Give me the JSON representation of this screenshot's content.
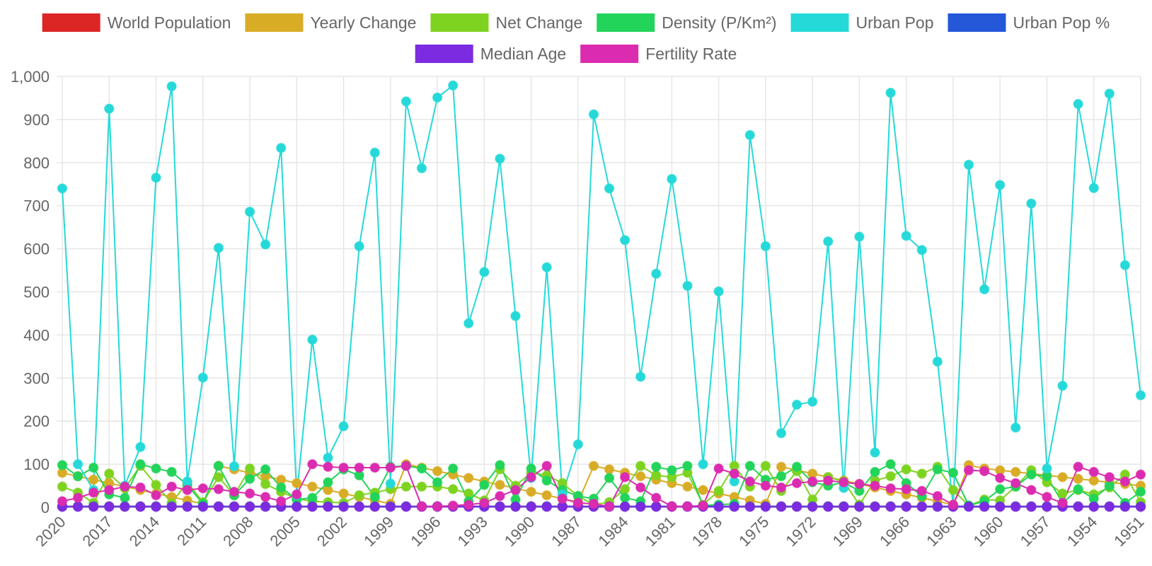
{
  "chart_data": {
    "type": "line",
    "x": [
      "2020",
      "2019",
      "2018",
      "2017",
      "2016",
      "2015",
      "2014",
      "2013",
      "2012",
      "2011",
      "2010",
      "2009",
      "2008",
      "2007",
      "2006",
      "2005",
      "2004",
      "2003",
      "2002",
      "2001",
      "2000",
      "1999",
      "1998",
      "1997",
      "1996",
      "1995",
      "1994",
      "1993",
      "1992",
      "1991",
      "1990",
      "1989",
      "1988",
      "1987",
      "1986",
      "1985",
      "1984",
      "1983",
      "1982",
      "1981",
      "1980",
      "1979",
      "1978",
      "1977",
      "1976",
      "1975",
      "1974",
      "1973",
      "1972",
      "1971",
      "1970",
      "1969",
      "1968",
      "1967",
      "1966",
      "1965",
      "1964",
      "1963",
      "1962",
      "1961",
      "1960",
      "1959",
      "1958",
      "1957",
      "1956",
      "1955",
      "1954",
      "1953",
      "1952",
      "1951"
    ],
    "ylim": [
      0,
      1000
    ],
    "yticks": [
      "0",
      "100",
      "200",
      "300",
      "400",
      "500",
      "600",
      "700",
      "800",
      "900",
      "1,000"
    ],
    "grid": true,
    "legend_position": "top",
    "series": [
      {
        "name": "World Population",
        "color": "#dc2626",
        "values": [
          2,
          2,
          2,
          2,
          2,
          2,
          2,
          2,
          2,
          2,
          2,
          2,
          2,
          2,
          2,
          2,
          2,
          2,
          2,
          2,
          2,
          2,
          2,
          2,
          2,
          2,
          2,
          2,
          2,
          2,
          2,
          2,
          2,
          2,
          2,
          2,
          2,
          2,
          2,
          2,
          2,
          2,
          2,
          2,
          2,
          2,
          2,
          2,
          2,
          2,
          2,
          2,
          2,
          2,
          2,
          2,
          2,
          2,
          2,
          2,
          2,
          2,
          2,
          2,
          2,
          2,
          2,
          2,
          2,
          2
        ]
      },
      {
        "name": "Yearly Change",
        "color": "#d9ac26",
        "values": [
          80,
          72,
          64,
          56,
          48,
          40,
          32,
          24,
          16,
          8,
          96,
          88,
          80,
          72,
          64,
          56,
          48,
          40,
          32,
          24,
          16,
          8,
          100,
          92,
          84,
          76,
          68,
          60,
          52,
          44,
          36,
          28,
          20,
          12,
          96,
          88,
          80,
          72,
          64,
          56,
          48,
          40,
          32,
          24,
          16,
          8,
          94,
          86,
          78,
          70,
          62,
          54,
          46,
          38,
          30,
          22,
          14,
          6,
          98,
          90,
          86,
          82,
          78,
          74,
          70,
          66,
          62,
          58,
          54,
          50
        ]
      },
      {
        "name": "Net Change",
        "color": "#7ed321",
        "values": [
          48,
          34,
          10,
          78,
          44,
          96,
          52,
          10,
          58,
          12,
          70,
          28,
          90,
          54,
          36,
          20,
          14,
          12,
          10,
          28,
          34,
          42,
          48,
          48,
          48,
          42,
          32,
          16,
          88,
          50,
          80,
          74,
          56,
          26,
          6,
          12,
          42,
          96,
          74,
          70,
          80,
          6,
          38,
          96,
          48,
          96,
          38,
          84,
          18,
          70,
          60,
          6,
          62,
          72,
          88,
          78,
          94,
          40,
          4,
          18,
          16,
          48,
          86,
          58,
          32,
          40,
          30,
          46,
          76,
          12
        ]
      },
      {
        "name": "Density (P/Km²)",
        "color": "#22d45a",
        "values": [
          98,
          72,
          92,
          30,
          22,
          100,
          90,
          82,
          52,
          8,
          96,
          28,
          66,
          88,
          46,
          18,
          22,
          58,
          88,
          74,
          24,
          94,
          96,
          90,
          58,
          90,
          14,
          52,
          98,
          18,
          90,
          62,
          40,
          26,
          20,
          68,
          22,
          14,
          94,
          86,
          96,
          4,
          6,
          8,
          96,
          64,
          72,
          94,
          58,
          50,
          58,
          38,
          82,
          100,
          56,
          26,
          88,
          80,
          4,
          14,
          42,
          48,
          76,
          72,
          10,
          42,
          20,
          50,
          10,
          36
        ]
      },
      {
        "name": "Urban Pop",
        "color": "#26d9d9",
        "values": [
          740,
          100,
          40,
          925,
          50,
          140,
          765,
          977,
          60,
          301,
          602,
          95,
          686,
          610,
          834,
          28,
          389,
          115,
          188,
          606,
          823,
          55,
          942,
          787,
          951,
          979,
          427,
          546,
          809,
          444,
          68,
          557,
          30,
          146,
          912,
          740,
          620,
          303,
          542,
          762,
          514,
          100,
          501,
          60,
          864,
          606,
          172,
          238,
          245,
          617,
          45,
          628,
          127,
          962,
          630,
          597,
          338,
          4,
          795,
          506,
          748,
          185,
          705,
          90,
          282,
          936,
          741,
          960,
          562,
          260
        ]
      },
      {
        "name": "Urban Pop %",
        "color": "#2558d9",
        "values": [
          2,
          2,
          2,
          2,
          2,
          2,
          2,
          2,
          2,
          2,
          2,
          2,
          2,
          2,
          2,
          2,
          2,
          2,
          2,
          2,
          2,
          2,
          2,
          2,
          2,
          2,
          2,
          2,
          2,
          2,
          2,
          2,
          2,
          2,
          2,
          2,
          2,
          2,
          2,
          2,
          2,
          2,
          2,
          2,
          2,
          2,
          2,
          2,
          2,
          2,
          2,
          2,
          2,
          2,
          2,
          2,
          2,
          2,
          2,
          2,
          2,
          2,
          2,
          2,
          2,
          2,
          2,
          2,
          2,
          2
        ]
      },
      {
        "name": "Median Age",
        "color": "#7c2be0",
        "values": [
          1,
          1,
          1,
          1,
          1,
          1,
          1,
          1,
          1,
          1,
          1,
          1,
          1,
          1,
          1,
          1,
          1,
          1,
          1,
          1,
          1,
          1,
          1,
          1,
          1,
          1,
          1,
          1,
          1,
          1,
          1,
          1,
          1,
          1,
          1,
          1,
          1,
          1,
          1,
          1,
          1,
          1,
          1,
          1,
          1,
          1,
          1,
          1,
          1,
          1,
          1,
          1,
          1,
          1,
          1,
          1,
          1,
          1,
          1,
          1,
          1,
          1,
          1,
          1,
          1,
          1,
          1,
          1,
          1,
          1
        ]
      },
      {
        "name": "Fertility Rate",
        "color": "#db2bb0",
        "values": [
          14,
          22,
          34,
          40,
          48,
          46,
          28,
          48,
          40,
          44,
          42,
          36,
          32,
          24,
          14,
          30,
          100,
          94,
          92,
          92,
          92,
          92,
          96,
          2,
          2,
          4,
          6,
          10,
          26,
          40,
          70,
          96,
          20,
          10,
          8,
          2,
          70,
          46,
          22,
          2,
          2,
          4,
          90,
          78,
          60,
          50,
          46,
          56,
          60,
          62,
          58,
          54,
          50,
          44,
          42,
          38,
          26,
          6,
          86,
          84,
          68,
          56,
          40,
          24,
          10,
          94,
          82,
          70,
          60,
          76
        ]
      }
    ]
  }
}
